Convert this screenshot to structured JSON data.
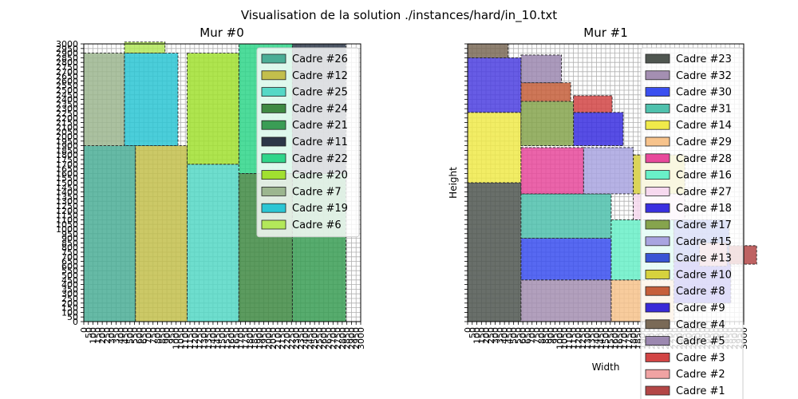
{
  "suptitle": "Visualisation de la solution ./instances/hard/in_10.txt",
  "chart_data": [
    {
      "type": "rectangles",
      "title": "Mur #0",
      "xlabel": "",
      "ylabel": "",
      "xlim": [
        0,
        3000
      ],
      "ylim": [
        0,
        3000
      ],
      "grid": true,
      "legend_placement": "upper right",
      "tick_step": 50,
      "tick_label_step": 50,
      "ticks": {
        "y": [
          "0",
          "50",
          "100",
          "150",
          "200",
          "250",
          "300",
          "350",
          "400",
          "450",
          "500",
          "550",
          "600",
          "650",
          "700",
          "750",
          "800",
          "850",
          "900",
          "950",
          "1000",
          "1050",
          "1100",
          "1150",
          "1200",
          "1250",
          "1300",
          "1350",
          "1400",
          "1450",
          "1500",
          "1550",
          "1600",
          "1650",
          "1700",
          "1750",
          "1800",
          "1850",
          "1900",
          "1950",
          "2000",
          "2050",
          "2100",
          "2150",
          "2200",
          "2250",
          "2300",
          "2350",
          "2400",
          "2450",
          "2500",
          "2550",
          "2600",
          "2650",
          "2700",
          "2750",
          "2800",
          "2850",
          "2900",
          "2950",
          "3000"
        ]
      },
      "rects": [
        {
          "label": "Cadre #26",
          "x": 0,
          "y": 0,
          "w": 560,
          "h": 1900,
          "color": "#4bae96"
        },
        {
          "label": "Cadre #12",
          "x": 560,
          "y": 0,
          "w": 560,
          "h": 1900,
          "color": "#c3bf4c"
        },
        {
          "label": "Cadre #25",
          "x": 1120,
          "y": 0,
          "w": 560,
          "h": 1700,
          "color": "#55d8c6"
        },
        {
          "label": "Cadre #24",
          "x": 1680,
          "y": 0,
          "w": 580,
          "h": 1600,
          "color": "#3f8a43"
        },
        {
          "label": "Cadre #21",
          "x": 2260,
          "y": 0,
          "w": 580,
          "h": 1600,
          "color": "#3a9d55"
        },
        {
          "label": "Cadre #11",
          "x": 2260,
          "y": 1600,
          "w": 580,
          "h": 1400,
          "color": "#2d3748"
        },
        {
          "label": "Cadre #22",
          "x": 1680,
          "y": 1600,
          "w": 580,
          "h": 1400,
          "color": "#2fd68a"
        },
        {
          "label": "Cadre #20",
          "x": 1120,
          "y": 1700,
          "w": 560,
          "h": 1200,
          "color": "#a1e030"
        },
        {
          "label": "Cadre #7",
          "x": 0,
          "y": 1900,
          "w": 440,
          "h": 1000,
          "color": "#9cb68f"
        },
        {
          "label": "Cadre #19",
          "x": 440,
          "y": 1900,
          "w": 580,
          "h": 1000,
          "color": "#2bc6d4"
        },
        {
          "label": "Cadre #6",
          "x": 440,
          "y": 2900,
          "w": 440,
          "h": 120,
          "color": "#b3e85a"
        }
      ]
    },
    {
      "type": "rectangles",
      "title": "Mur #1",
      "xlabel": "Width",
      "ylabel": "Height",
      "xlim": [
        0,
        3000
      ],
      "ylim": [
        0,
        3000
      ],
      "grid": true,
      "legend_placement": "upper right",
      "tick_step": 50,
      "tick_label_step": 50,
      "ticks": {},
      "rects": [
        {
          "label": "Cadre #23",
          "x": 0,
          "y": 0,
          "w": 580,
          "h": 1500,
          "color": "#4f5650"
        },
        {
          "label": "Cadre #32",
          "x": 580,
          "y": 0,
          "w": 980,
          "h": 450,
          "color": "#a48fb2"
        },
        {
          "label": "Cadre #30",
          "x": 580,
          "y": 450,
          "w": 980,
          "h": 450,
          "color": "#3a4ff0"
        },
        {
          "label": "Cadre #31",
          "x": 580,
          "y": 900,
          "w": 980,
          "h": 480,
          "color": "#4fc1ad"
        },
        {
          "label": "Cadre #14",
          "x": 0,
          "y": 1500,
          "w": 580,
          "h": 760,
          "color": "#f0ea4a"
        },
        {
          "label": "Cadre #29",
          "x": 1560,
          "y": 0,
          "w": 680,
          "h": 450,
          "color": "#f7c38c"
        },
        {
          "label": "Cadre #28",
          "x": 580,
          "y": 1380,
          "w": 680,
          "h": 500,
          "color": "#e8499b"
        },
        {
          "label": "Cadre #16",
          "x": 1560,
          "y": 450,
          "w": 680,
          "h": 650,
          "color": "#69f0c8"
        },
        {
          "label": "Cadre #27",
          "x": 1800,
          "y": 1100,
          "w": 560,
          "h": 700,
          "color": "#f7d9ef"
        },
        {
          "label": "Cadre #18",
          "x": 1150,
          "y": 1900,
          "w": 540,
          "h": 360,
          "color": "#3a2fe0"
        },
        {
          "label": "Cadre #17",
          "x": 580,
          "y": 1900,
          "w": 570,
          "h": 480,
          "color": "#86a44d"
        },
        {
          "label": "Cadre #15",
          "x": 1260,
          "y": 1380,
          "w": 540,
          "h": 500,
          "color": "#a9a5e0"
        },
        {
          "label": "Cadre #13",
          "x": 2240,
          "y": 650,
          "w": 600,
          "h": 450,
          "color": "#3955d4"
        },
        {
          "label": "Cadre #10",
          "x": 1800,
          "y": 1380,
          "w": 560,
          "h": 420,
          "color": "#d6d23e"
        },
        {
          "label": "Cadre #8",
          "x": 580,
          "y": 2380,
          "w": 540,
          "h": 200,
          "color": "#c65f3b"
        },
        {
          "label": "Cadre #9",
          "x": 2240,
          "y": 200,
          "w": 620,
          "h": 450,
          "color": "#3a2ad8"
        },
        {
          "label": "Cadre #4",
          "x": 0,
          "y": 2850,
          "w": 440,
          "h": 150,
          "color": "#7a6a57"
        },
        {
          "label": "Cadre #5",
          "x": 580,
          "y": 2580,
          "w": 440,
          "h": 300,
          "color": "#9c88b0"
        },
        {
          "label": "Cadre #3",
          "x": 1150,
          "y": 2260,
          "w": 420,
          "h": 180,
          "color": "#d24545"
        },
        {
          "label": "Cadre #2",
          "x": 2520,
          "y": 600,
          "w": 300,
          "h": 250,
          "color": "#f0a3a3"
        },
        {
          "label": "Cadre #1",
          "x": 2840,
          "y": 620,
          "w": 300,
          "h": 200,
          "color": "#b34646"
        },
        {
          "label": "",
          "x": 0,
          "y": 2260,
          "w": 580,
          "h": 590,
          "color": "#4c3fe0"
        }
      ]
    }
  ]
}
